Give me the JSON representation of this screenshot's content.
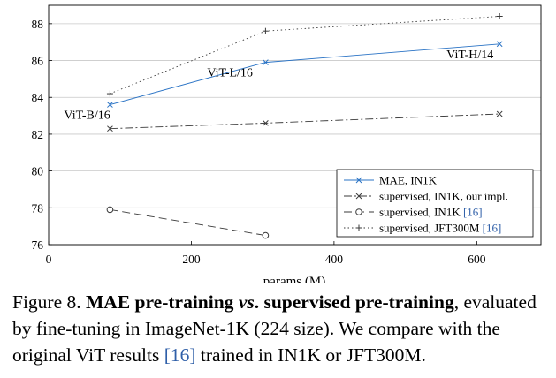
{
  "chart_data": {
    "type": "line",
    "xlabel": "params (M)",
    "ylabel": "",
    "xlim": [
      0,
      690
    ],
    "ylim": [
      76,
      89
    ],
    "xticks": [
      0,
      200,
      400,
      600
    ],
    "yticks": [
      76,
      78,
      80,
      82,
      84,
      86,
      88
    ],
    "grid": "horizontal",
    "legend_position": "bottom-right",
    "series": [
      {
        "name": "MAE, IN1K",
        "ref": "",
        "style": "solid",
        "marker": "x",
        "color": "#2a73c5",
        "x": [
          86,
          304,
          632
        ],
        "y": [
          83.6,
          85.9,
          86.9
        ]
      },
      {
        "name": "supervised, IN1K, our impl.",
        "ref": "",
        "style": "dashdot",
        "marker": "x",
        "color": "#3a3a3a",
        "x": [
          86,
          304,
          632
        ],
        "y": [
          82.3,
          82.6,
          83.1
        ]
      },
      {
        "name": "supervised, IN1K ",
        "ref": "[16]",
        "style": "dashed",
        "marker": "circle",
        "color": "#3a3a3a",
        "x": [
          86,
          304
        ],
        "y": [
          77.9,
          76.5
        ]
      },
      {
        "name": "supervised, JFT300M ",
        "ref": "[16]",
        "style": "dotted",
        "marker": "plus",
        "color": "#3a3a3a",
        "x": [
          86,
          304,
          632
        ],
        "y": [
          84.2,
          87.6,
          88.4
        ]
      }
    ],
    "annotations": [
      {
        "text": "ViT-B/16",
        "x": 86,
        "y": 83.6
      },
      {
        "text": "ViT-L/16",
        "x": 304,
        "y": 85.9
      },
      {
        "text": "ViT-H/14",
        "x": 632,
        "y": 86.9
      }
    ]
  },
  "caption": {
    "prefix": "Figure 8. ",
    "bold_a": "MAE pre-training ",
    "bold_vs": "vs",
    "bold_b": ". supervised pre-training",
    "text_a": ", evaluated by fine-tuning in ImageNet-1K (224 size). We compare with the original ViT results ",
    "ref": "[16]",
    "text_b": " trained in IN1K or JFT300M."
  }
}
